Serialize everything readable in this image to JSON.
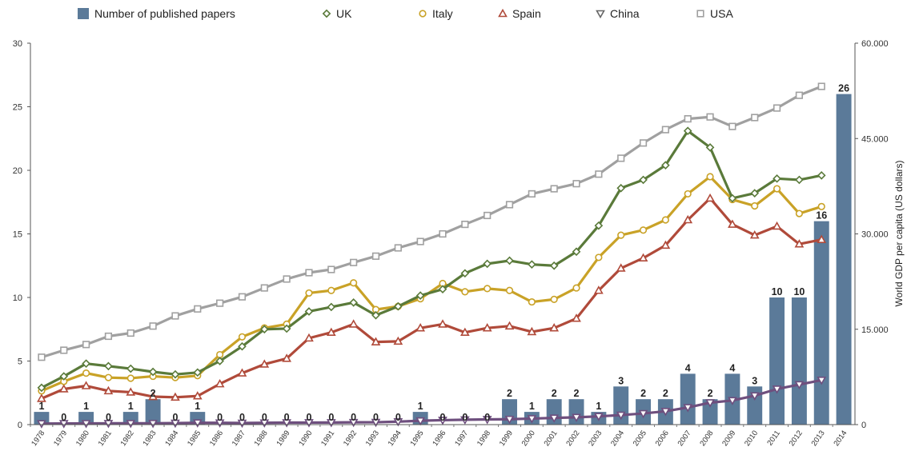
{
  "chart_data": {
    "type": "bar+line",
    "categories": [
      "1978",
      "1979",
      "1980",
      "1981",
      "1982",
      "1983",
      "1984",
      "1985",
      "1986",
      "1987",
      "1988",
      "1989",
      "1990",
      "1991",
      "1992",
      "1993",
      "1994",
      "1995",
      "1996",
      "1997",
      "1998",
      "1999",
      "2000",
      "2001",
      "2002",
      "2003",
      "2004",
      "2005",
      "2006",
      "2007",
      "2008",
      "2009",
      "2010",
      "2011",
      "2012",
      "2013",
      "2014"
    ],
    "bars": {
      "name": "Number of published papers",
      "color": "#5b7a99",
      "values": [
        1,
        0,
        1,
        0,
        1,
        2,
        0,
        1,
        0,
        0,
        0,
        0,
        0,
        0,
        0,
        0,
        0,
        1,
        0,
        0,
        0,
        2,
        1,
        2,
        2,
        1,
        3,
        2,
        2,
        4,
        2,
        4,
        3,
        10,
        10,
        16,
        26
      ]
    },
    "series": [
      {
        "name": "UK",
        "color": "#5a7a3a",
        "marker": "diamond",
        "values": [
          5800,
          7600,
          9600,
          9200,
          8800,
          8300,
          7900,
          8200,
          10000,
          12300,
          15000,
          15100,
          17800,
          18500,
          19200,
          17200,
          18600,
          20300,
          21300,
          23800,
          25300,
          25800,
          25200,
          25000,
          27200,
          31300,
          37200,
          38500,
          40800,
          46200,
          43600,
          35600,
          36400,
          38700,
          38500,
          39200,
          null
        ]
      },
      {
        "name": "Italy",
        "color": "#c9a227",
        "marker": "circle",
        "values": [
          5300,
          6800,
          8100,
          7400,
          7300,
          7600,
          7400,
          7700,
          11000,
          13800,
          15200,
          15800,
          20700,
          21100,
          22300,
          18100,
          18600,
          19800,
          22200,
          20900,
          21400,
          21100,
          19300,
          19700,
          21500,
          26300,
          29800,
          30600,
          32200,
          36300,
          39000,
          35400,
          34400,
          37100,
          33200,
          34300,
          null
        ]
      },
      {
        "name": "Spain",
        "color": "#b04a3a",
        "marker": "triangle-up",
        "values": [
          4100,
          5600,
          6100,
          5300,
          5100,
          4400,
          4300,
          4500,
          6400,
          8100,
          9500,
          10400,
          13600,
          14500,
          15800,
          13000,
          13100,
          15200,
          15800,
          14500,
          15200,
          15500,
          14600,
          15200,
          16700,
          21100,
          24600,
          26200,
          28200,
          32200,
          35600,
          31500,
          29800,
          31200,
          28400,
          29100,
          null
        ]
      },
      {
        "name": "China",
        "color": "#6e4f7e",
        "marker": "triangle-down",
        "values": [
          160,
          180,
          190,
          200,
          200,
          210,
          240,
          290,
          280,
          250,
          280,
          310,
          320,
          330,
          360,
          370,
          470,
          610,
          700,
          770,
          820,
          850,
          950,
          1050,
          1150,
          1300,
          1500,
          1750,
          2100,
          2700,
          3450,
          3800,
          4550,
          5600,
          6300,
          7000,
          null
        ]
      },
      {
        "name": "USA",
        "color": "#a0a0a0",
        "marker": "square",
        "values": [
          10600,
          11700,
          12600,
          13900,
          14400,
          15500,
          17100,
          18200,
          19100,
          20100,
          21500,
          22900,
          23900,
          24400,
          25500,
          26500,
          27800,
          28800,
          30000,
          31500,
          32900,
          34600,
          36300,
          37100,
          37900,
          39400,
          41900,
          44300,
          46400,
          48100,
          48400,
          46900,
          48300,
          49800,
          51800,
          53200,
          null
        ]
      }
    ],
    "y_left": {
      "ticks": [
        "0",
        "5",
        "10",
        "15",
        "20",
        "25",
        "30"
      ],
      "ylim": [
        0,
        30
      ]
    },
    "y_right": {
      "label": "World GDP per capita (US dollars)",
      "ticks": [
        "0",
        "15.000",
        "30.000",
        "45.000",
        "60.000"
      ],
      "ylim": [
        0,
        60000
      ]
    },
    "legend_position": "top",
    "grid": false
  }
}
